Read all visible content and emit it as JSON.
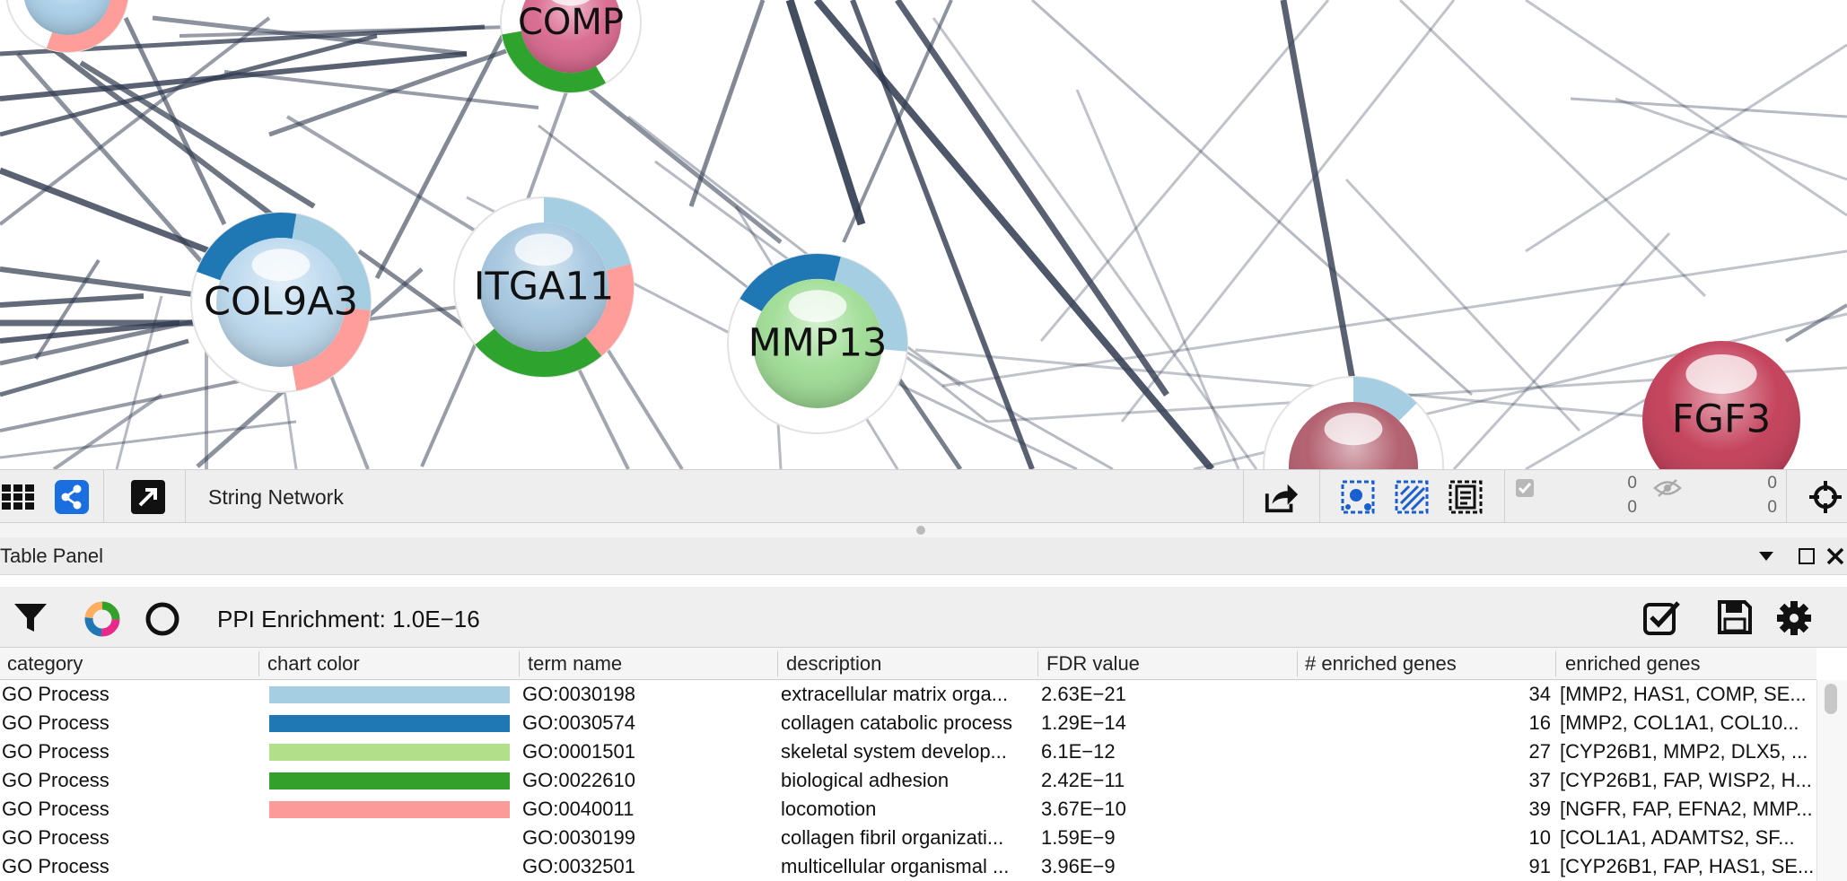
{
  "network": {
    "nodes": [
      {
        "label": "",
        "color": "#a9cfe8",
        "pie": [
          "#ff9d9a"
        ]
      },
      {
        "label": "COMP",
        "color": "#d8668d",
        "pie": [
          "#2ea32e",
          "#a6cde4"
        ]
      },
      {
        "label": "COL9A3",
        "color": "#bcd9ee",
        "pie": [
          "#1f78b4",
          "#a6cee3",
          "#ff9d9a"
        ]
      },
      {
        "label": "ITGA11",
        "color": "#a4c6df",
        "pie": [
          "#a6cee3",
          "#ff9d9a",
          "#2ea32e"
        ]
      },
      {
        "label": "MMP13",
        "color": "#9edc94",
        "pie": [
          "#1f78b4",
          "#a6cee3"
        ]
      },
      {
        "label": "",
        "color": "#b05a6a",
        "pie": [
          "#a6cee3"
        ]
      },
      {
        "label": "FGF3",
        "color": "#c23a55",
        "pie": []
      }
    ]
  },
  "toolbar": {
    "network_title": "String Network",
    "selected_nodes": "0",
    "selected_nodes_total": "0",
    "hidden_nodes": "0",
    "hidden_nodes_total": "0"
  },
  "panel": {
    "title": "Table Panel",
    "ppi_enrichment": "PPI Enrichment: 1.0E−16"
  },
  "table": {
    "columns": [
      "category",
      "chart color",
      "term name",
      "description",
      "FDR value",
      "# enriched genes",
      "enriched genes"
    ],
    "rows": [
      {
        "category": "GO Process",
        "color": "#a6cee3",
        "term": "GO:0030198",
        "description": "extracellular matrix orga...",
        "fdr": "2.63E−21",
        "count": "34",
        "genes": "[MMP2, HAS1, COMP, SE..."
      },
      {
        "category": "GO Process",
        "color": "#1f78b4",
        "term": "GO:0030574",
        "description": "collagen catabolic process",
        "fdr": "1.29E−14",
        "count": "16",
        "genes": "[MMP2, COL1A1, COL10..."
      },
      {
        "category": "GO Process",
        "color": "#b2df8a",
        "term": "GO:0001501",
        "description": "skeletal system develop...",
        "fdr": "6.1E−12",
        "count": "27",
        "genes": "[CYP26B1, MMP2, DLX5, ..."
      },
      {
        "category": "GO Process",
        "color": "#33a02c",
        "term": "GO:0022610",
        "description": "biological adhesion",
        "fdr": "2.42E−11",
        "count": "37",
        "genes": "[CYP26B1, FAP, WISP2, H..."
      },
      {
        "category": "GO Process",
        "color": "#fb9a99",
        "term": "GO:0040011",
        "description": "locomotion",
        "fdr": "3.67E−10",
        "count": "39",
        "genes": "[NGFR, FAP, EFNA2, MMP..."
      },
      {
        "category": "GO Process",
        "color": "",
        "term": "GO:0030199",
        "description": "collagen fibril organizati...",
        "fdr": "1.59E−9",
        "count": "10",
        "genes": "[COL1A1, ADAMTS2, SF..."
      },
      {
        "category": "GO Process",
        "color": "",
        "term": "GO:0032501",
        "description": "multicellular organismal ...",
        "fdr": "3.96E−9",
        "count": "91",
        "genes": "[CYP26B1, FAP, HAS1, SE..."
      }
    ]
  },
  "icons": {
    "apps": "grid-icon",
    "share": "share-network-icon",
    "detach": "detach-arrow-icon",
    "export": "export-icon",
    "select_nodes": "select-nodes-icon",
    "select_edges": "select-edges-icon",
    "select_annotations": "select-annotations-icon",
    "selected": "checkbox-icon",
    "hidden": "eye-hidden-icon",
    "fit": "crosshair-icon",
    "filter": "filter-icon",
    "donut": "donut-chart-icon",
    "circle": "circle-icon",
    "checklist": "checklist-icon",
    "save": "save-icon",
    "settings": "gear-icon",
    "dropdown": "chevron-down-icon",
    "maximize": "maximize-icon",
    "close": "close-icon"
  }
}
